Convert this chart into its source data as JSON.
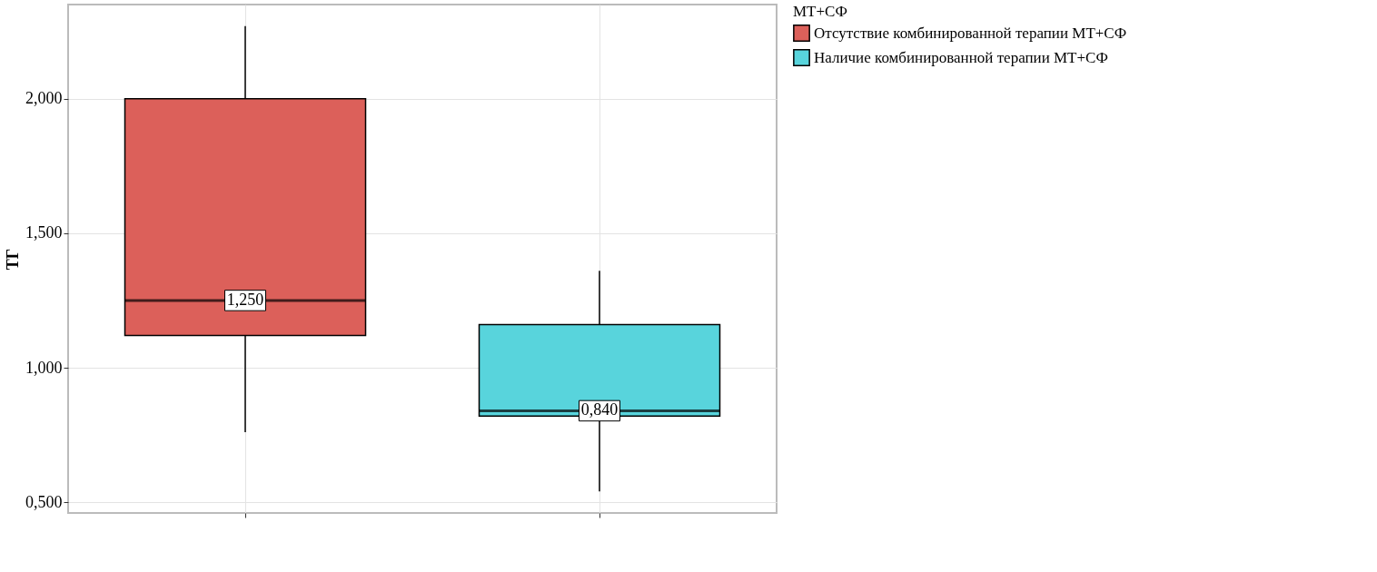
{
  "chart_data": {
    "type": "box",
    "ylabel": "ТГ",
    "legend_title": "МТ+СФ",
    "categories": [
      null,
      null
    ],
    "series": [
      {
        "name": "Отсутствие комбинированной терапии МТ+СФ",
        "color": "#dc605a",
        "boxes": [
          {
            "low": 0.76,
            "q1": 1.12,
            "median": 1.25,
            "q3": 2.0,
            "high": 2.27
          },
          null
        ]
      },
      {
        "name": "Наличие комбинированной терапии МТ+СФ",
        "color": "#58d4dc",
        "boxes": [
          null,
          {
            "low": 0.54,
            "q1": 0.82,
            "median": 0.84,
            "q3": 1.16,
            "high": 1.36
          }
        ]
      }
    ],
    "annotations": [
      {
        "text": "1,250",
        "y": 1.25
      },
      {
        "text": "0,840",
        "y": 0.84
      }
    ],
    "ylim": [
      0.46,
      2.35
    ],
    "yticks": [
      {
        "value": 0.5,
        "label": "0,500"
      },
      {
        "value": 1.0,
        "label": "1,000"
      },
      {
        "value": 1.5,
        "label": "1,500"
      },
      {
        "value": 2.0,
        "label": "2,000"
      }
    ],
    "grid": true,
    "legend": "right",
    "tick_labels": "y"
  }
}
